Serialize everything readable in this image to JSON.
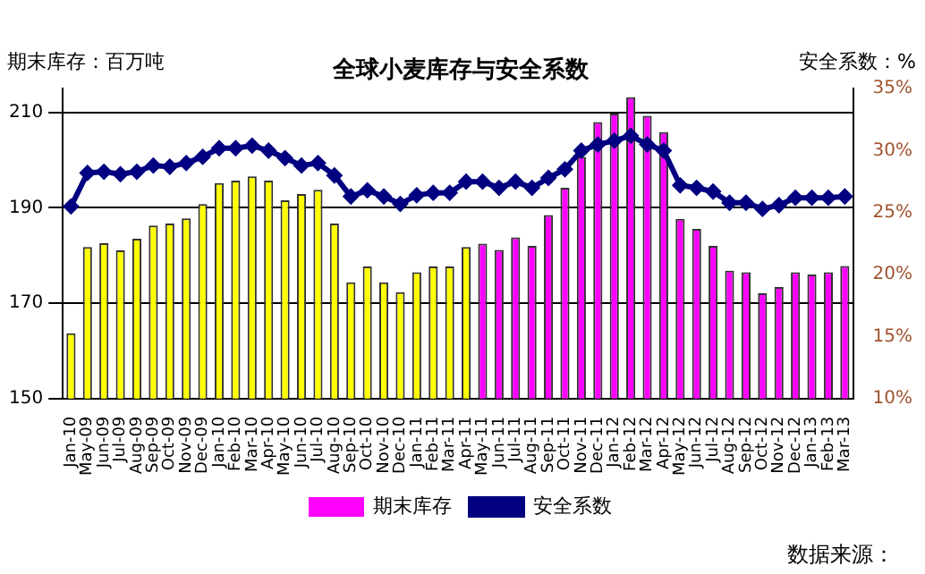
{
  "chart_data": {
    "type": "bar",
    "title": "全球小麦库存与安全系数",
    "ylabel": "期末库存：百万吨",
    "y2label": "安全系数：%",
    "categories": [
      "Jan-10",
      "May-09",
      "Jun-09",
      "Jul-09",
      "Aug-09",
      "Sep-09",
      "Oct-09",
      "Nov-09",
      "Dec-09",
      "Jan-10",
      "Feb-10",
      "Mar-10",
      "Apr-10",
      "May-10",
      "Jun-10",
      "Jul-10",
      "Aug-10",
      "Sep-10",
      "Oct-10",
      "Nov-10",
      "Dec-10",
      "Jan-11",
      "Feb-11",
      "Mar-11",
      "Apr-11",
      "May-11",
      "Jun-11",
      "Jul-11",
      "Aug-11",
      "Sep-11",
      "Oct-11",
      "Nov-11",
      "Dec-11",
      "Jan-12",
      "Feb-12",
      "Mar-12",
      "Apr-12",
      "May-12",
      "Jun-12",
      "Jul-12",
      "Aug-12",
      "Sep-12",
      "Oct-12",
      "Nov-12",
      "Dec-12",
      "Jan-13",
      "Feb-13",
      "Mar-13"
    ],
    "series": [
      {
        "name": "期末库存",
        "color": "#ff00ff",
        "colors": [
          "#ffff00",
          "#ffff00",
          "#ffff00",
          "#ffff00",
          "#ffff00",
          "#ffff00",
          "#ffff00",
          "#ffff00",
          "#ffff00",
          "#ffff00",
          "#ffff00",
          "#ffff00",
          "#ffff00",
          "#ffff00",
          "#ffff00",
          "#ffff00",
          "#ffff00",
          "#ffff00",
          "#ffff00",
          "#ffff00",
          "#ffff00",
          "#ffff00",
          "#ffff00",
          "#ffff00",
          "#ffff00",
          "#ff00ff",
          "#ff00ff",
          "#ff00ff",
          "#ff00ff",
          "#ff00ff",
          "#ff00ff",
          "#ff00ff",
          "#ff00ff",
          "#ff00ff",
          "#ff00ff",
          "#ff00ff",
          "#ff00ff",
          "#ff00ff",
          "#ff00ff",
          "#ff00ff",
          "#ff00ff",
          "#ff00ff",
          "#ff00ff",
          "#ff00ff",
          "#ff00ff",
          "#ff00ff",
          "#ff00ff",
          "#ff00ff"
        ],
        "values": [
          163.7,
          181.8,
          182.6,
          181.1,
          183.5,
          186.3,
          186.7,
          187.8,
          190.8,
          195.2,
          195.7,
          196.6,
          195.7,
          191.6,
          192.9,
          193.8,
          186.7,
          174.4,
          177.7,
          174.4,
          172.3,
          176.5,
          177.7,
          177.7,
          181.8,
          182.5,
          181.2,
          183.8,
          182,
          188.5,
          194.2,
          200.7,
          208,
          209.8,
          213.2,
          209.3,
          205.9,
          187.7,
          185.6,
          182,
          176.8,
          176.5,
          172.1,
          173.4,
          176.5,
          176,
          176.5,
          177.8
        ]
      },
      {
        "name": "安全系数",
        "type": "line",
        "axis": "y2",
        "color": "#000080",
        "marker": "diamond",
        "values": [
          25.5,
          28.2,
          28.3,
          28.1,
          28.3,
          28.8,
          28.7,
          29,
          29.5,
          30.2,
          30.2,
          30.4,
          30,
          29.4,
          28.8,
          29,
          28,
          26.3,
          26.8,
          26.3,
          25.7,
          26.4,
          26.6,
          26.6,
          27.5,
          27.5,
          27,
          27.5,
          27,
          27.8,
          28.5,
          30,
          30.5,
          30.8,
          31.2,
          30.5,
          30,
          27.2,
          27,
          26.7,
          25.8,
          25.8,
          25.3,
          25.6,
          26.2,
          26.2,
          26.2,
          26.3
        ]
      }
    ],
    "ylim": [
      150,
      215
    ],
    "yticks": [
      150,
      170,
      190,
      210
    ],
    "y2lim": [
      10,
      35
    ],
    "y2ticks": [
      {
        "value": 10,
        "label": "10%"
      },
      {
        "value": 15,
        "label": "15%"
      },
      {
        "value": 20,
        "label": "20%"
      },
      {
        "value": 25,
        "label": "25%"
      },
      {
        "value": 30,
        "label": "30%"
      },
      {
        "value": 35,
        "label": "35%"
      }
    ],
    "grid": "y",
    "legend": "bottom",
    "annotations": [
      "数据来源："
    ]
  }
}
